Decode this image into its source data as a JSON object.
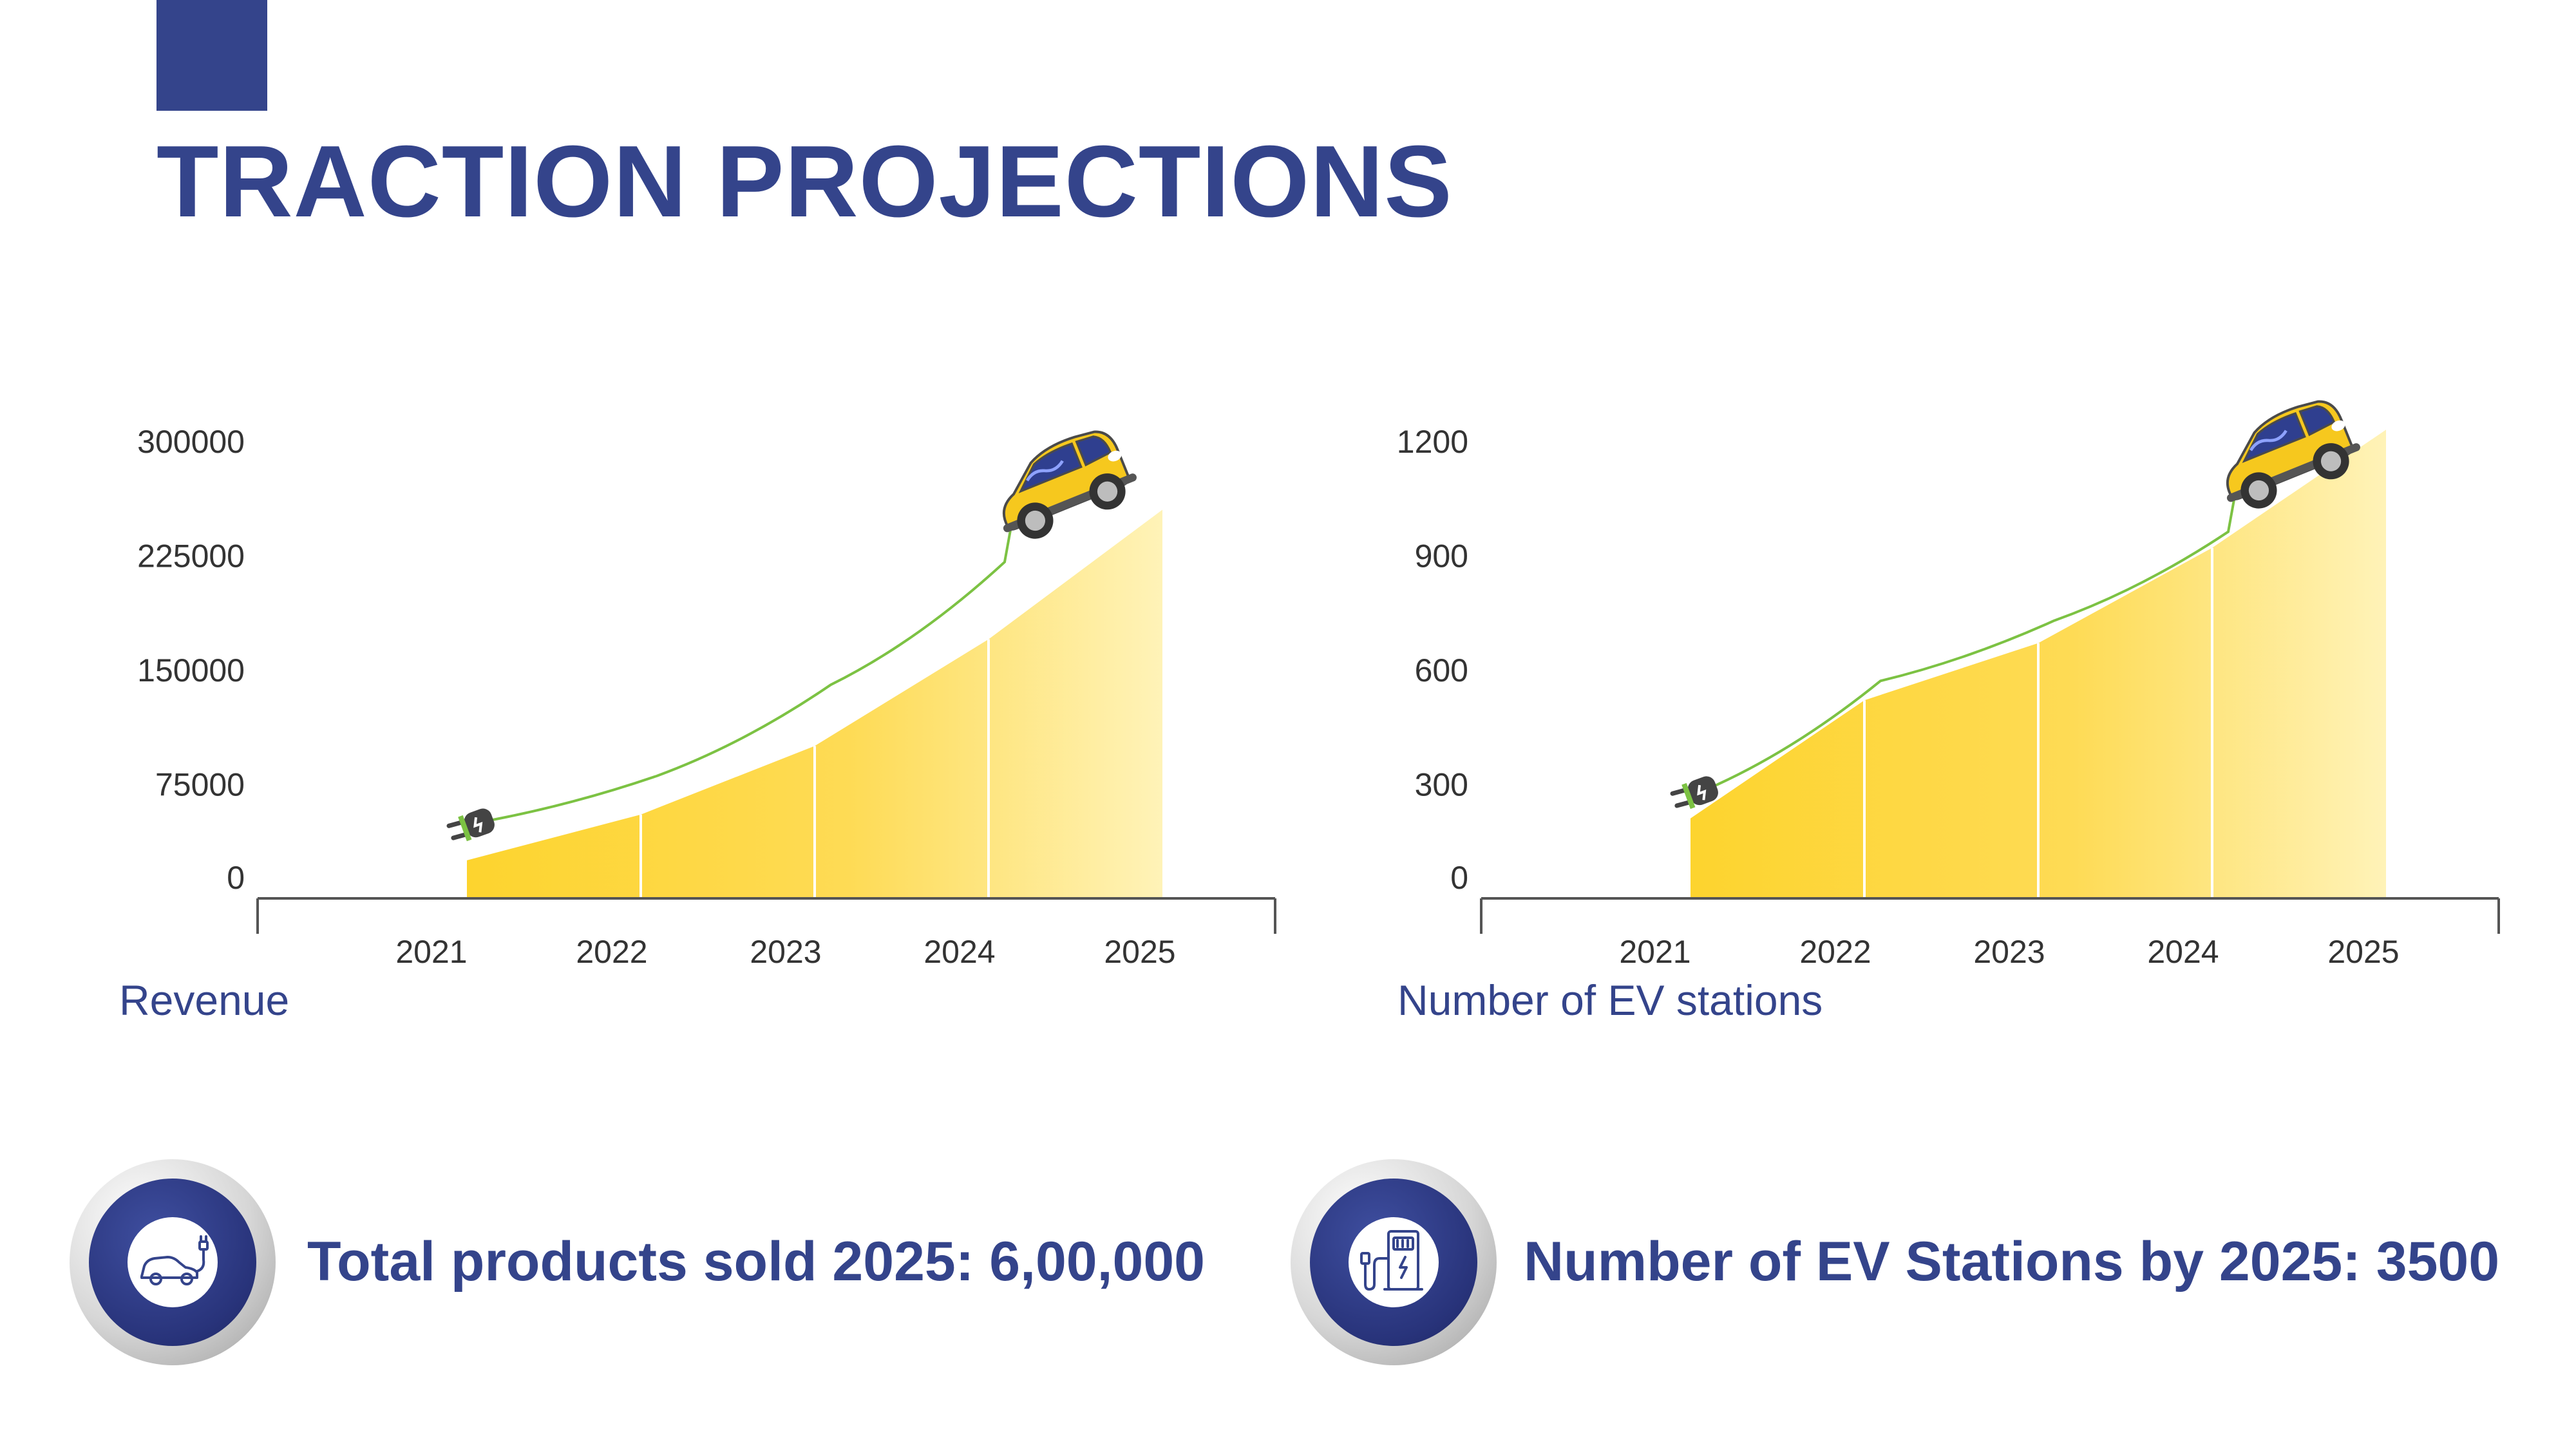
{
  "header": {
    "title": "TRACTION PROJECTIONS"
  },
  "colors": {
    "brand": "#34448b",
    "area_start": "#fdd42e",
    "area_end": "#fff3b8",
    "line": "#7cc243",
    "car": "#f6c81e"
  },
  "chart_data": [
    {
      "type": "area",
      "title": "Revenue",
      "categories": [
        "2021",
        "2022",
        "2023",
        "2024",
        "2025"
      ],
      "values": [
        25000,
        55000,
        100000,
        170000,
        255000
      ],
      "yticks": [
        0,
        75000,
        150000,
        225000,
        300000
      ],
      "ylim": [
        0,
        300000
      ],
      "grid": false,
      "legend": "none"
    },
    {
      "type": "area",
      "title": "Number of EV stations",
      "categories": [
        "2021",
        "2022",
        "2023",
        "2024",
        "2025"
      ],
      "values": [
        210,
        520,
        670,
        920,
        1230
      ],
      "yticks": [
        0,
        300,
        600,
        900,
        1200
      ],
      "ylim": [
        0,
        1200
      ],
      "grid": false,
      "legend": "none"
    }
  ],
  "stats": [
    {
      "text": "Total products sold 2025: 6,00,000",
      "icon": "electric-car-icon"
    },
    {
      "text": "Number of EV Stations by 2025: 3500",
      "icon": "charging-station-icon"
    }
  ]
}
